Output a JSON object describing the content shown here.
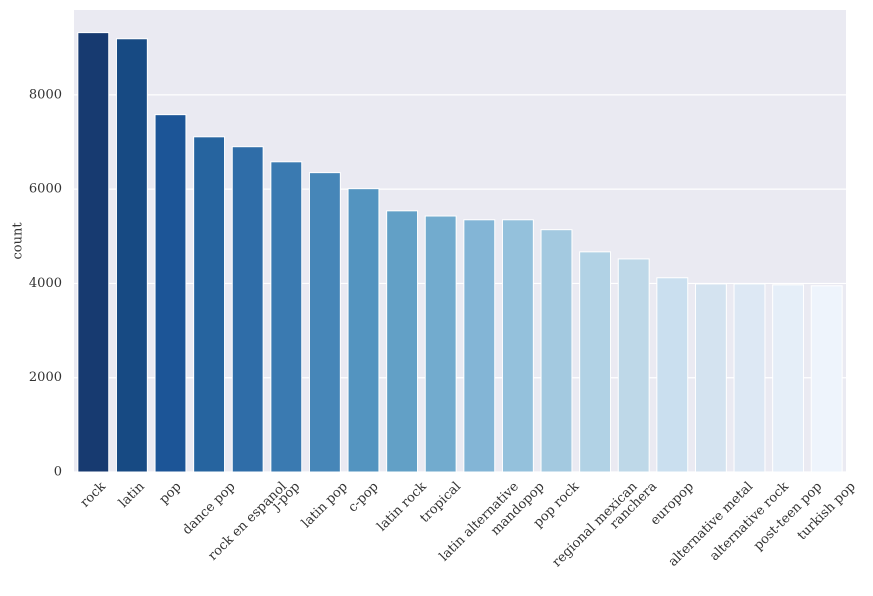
{
  "chart_data": {
    "type": "bar",
    "y_label": "count",
    "categories": [
      "rock",
      "latin",
      "pop",
      "dance pop",
      "rock en espanol",
      "j-pop",
      "latin pop",
      "c-pop",
      "latin rock",
      "tropical",
      "latin alternative",
      "mandopop",
      "pop rock",
      "regional mexican",
      "ranchera",
      "europop",
      "alternative metal",
      "alternative rock",
      "post-teen pop",
      "turkish pop"
    ],
    "values": [
      9320,
      9190,
      7580,
      7110,
      6900,
      6580,
      6350,
      6010,
      5540,
      5430,
      5350,
      5350,
      5140,
      4670,
      4520,
      4120,
      3990,
      3990,
      3970,
      3950
    ],
    "colors": [
      "#173a70",
      "#174a83",
      "#1c5597",
      "#26649f",
      "#2f6da8",
      "#3a7ab1",
      "#4686b8",
      "#5394c0",
      "#62a0c6",
      "#72abce",
      "#83b5d6",
      "#94c1dc",
      "#a3c9e0",
      "#b1d2e5",
      "#bed8e8",
      "#cadfef",
      "#d4e3f0",
      "#dde8f4",
      "#e5eef8",
      "#eef4fc"
    ],
    "ylim": [
      0,
      9800
    ],
    "yticks": [
      0,
      2000,
      4000,
      6000,
      8000
    ],
    "grid": true
  }
}
